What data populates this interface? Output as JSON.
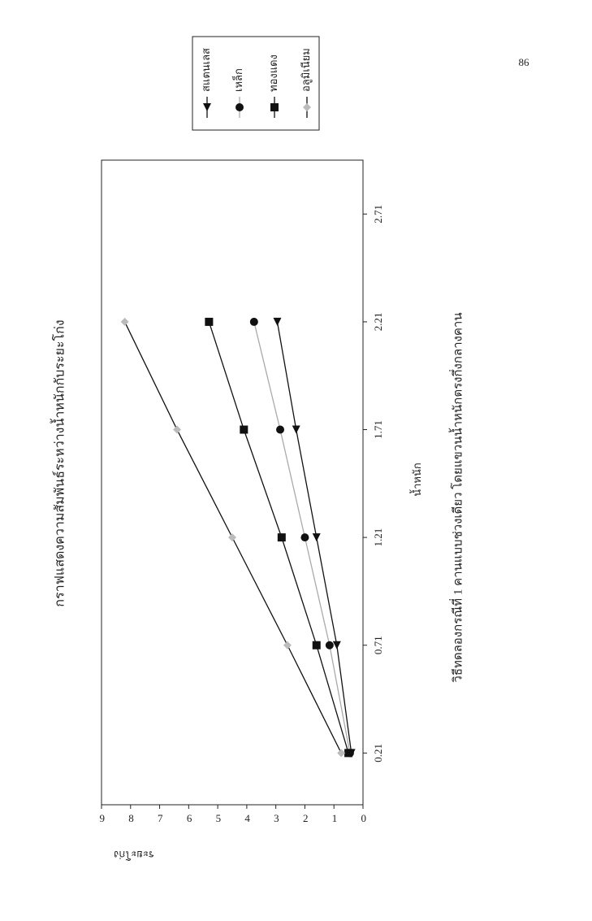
{
  "page_number": "86",
  "chart_data": {
    "type": "line",
    "title": "กราฟแสดงความสัมพันธ์ระหว่างน้ำหนักกับระยะโก่ง",
    "xlabel": "น้ำหนัก",
    "ylabel": "ระยะโก่ง",
    "caption": "วิธีทดลองกรณีที่ 1 คานแบบช่วงเดียว โดยแขวนน้ำหนักตรงกึ่งกลางคาน",
    "x": [
      0.21,
      0.71,
      1.21,
      1.71,
      2.21
    ],
    "xlim": [
      -0.03,
      2.96
    ],
    "xticks": [
      0.21,
      0.71,
      1.21,
      1.71,
      2.21,
      2.71
    ],
    "ylim": [
      0,
      9
    ],
    "yticks": [
      0,
      1,
      2,
      3,
      4,
      5,
      6,
      7,
      8,
      9
    ],
    "series": [
      {
        "name": "สแตนเลส",
        "marker": "triangle",
        "color": "#111111",
        "marker_color": "#111111",
        "values": [
          0.4,
          0.9,
          1.6,
          2.3,
          2.95
        ]
      },
      {
        "name": "เหล็ก",
        "marker": "circle",
        "color": "#aaaaaa",
        "marker_color": "#111111",
        "values": [
          0.45,
          1.15,
          2.0,
          2.85,
          3.75
        ]
      },
      {
        "name": "ทองแดง",
        "marker": "square",
        "color": "#111111",
        "marker_color": "#111111",
        "values": [
          0.5,
          1.6,
          2.8,
          4.1,
          5.3
        ]
      },
      {
        "name": "อลูมิเนียม",
        "marker": "diamond",
        "color": "#111111",
        "marker_color": "#bbbbbb",
        "values": [
          0.75,
          2.6,
          4.5,
          6.4,
          8.2
        ]
      }
    ]
  }
}
